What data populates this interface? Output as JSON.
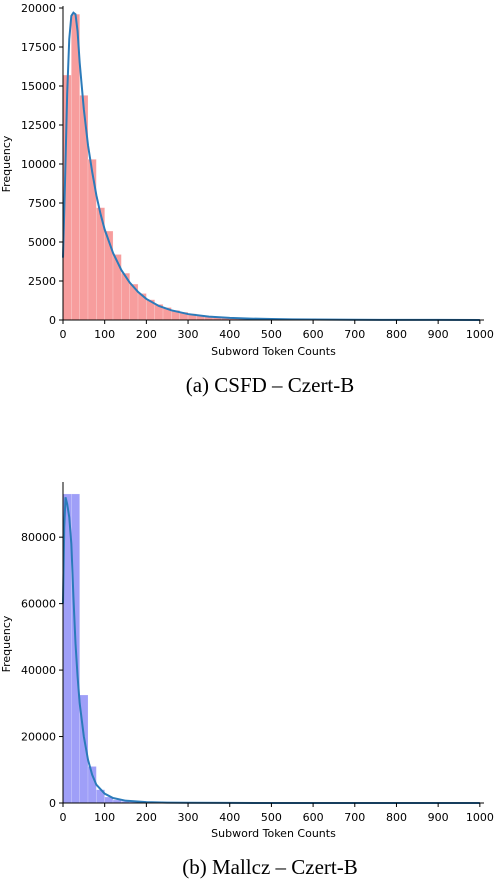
{
  "chart_data": [
    {
      "type": "bar",
      "caption": "(a) CSFD – Czert-B",
      "xlabel": "Subword Token Counts",
      "ylabel": "Frequency",
      "xlim": [
        0,
        1010
      ],
      "ylim": [
        0,
        20000
      ],
      "xticks": [
        0,
        100,
        200,
        300,
        400,
        500,
        600,
        700,
        800,
        900,
        1000
      ],
      "yticks": [
        0,
        2500,
        5000,
        7500,
        10000,
        12500,
        15000,
        17500,
        20000
      ],
      "bar_color": "#f47c7c",
      "kde_color": "#2b7bba",
      "bin_width": 20,
      "bins_x": [
        0,
        20,
        40,
        60,
        80,
        100,
        120,
        140,
        160,
        180,
        200,
        220,
        240,
        260,
        280,
        300,
        320,
        340,
        360,
        380,
        400,
        420,
        440,
        460,
        480,
        500,
        520,
        540,
        560,
        580,
        600,
        620,
        640,
        660,
        680,
        700,
        720,
        740,
        760,
        780,
        800
      ],
      "values": [
        15700,
        19600,
        14400,
        10300,
        7200,
        5700,
        4200,
        3000,
        2300,
        1700,
        1300,
        1000,
        800,
        620,
        500,
        400,
        320,
        260,
        210,
        170,
        140,
        120,
        100,
        85,
        70,
        60,
        50,
        42,
        36,
        30,
        26,
        22,
        19,
        16,
        14,
        12,
        10,
        9,
        8,
        7,
        6
      ],
      "kde_x": [
        0,
        5,
        10,
        15,
        20,
        25,
        30,
        35,
        40,
        50,
        60,
        70,
        80,
        90,
        100,
        120,
        140,
        160,
        180,
        200,
        230,
        260,
        300,
        350,
        400,
        450,
        500,
        550,
        600,
        700,
        800,
        900,
        1000
      ],
      "kde_y": [
        4000,
        9000,
        14500,
        18000,
        19500,
        19700,
        19600,
        18500,
        16500,
        13500,
        11200,
        9500,
        8000,
        6800,
        5800,
        4300,
        3200,
        2400,
        1800,
        1350,
        900,
        620,
        380,
        220,
        140,
        90,
        60,
        40,
        28,
        15,
        8,
        5,
        3
      ]
    },
    {
      "type": "bar",
      "caption": "(b) Mallcz – Czert-B",
      "xlabel": "Subword Token Counts",
      "ylabel": "Frequency",
      "xlim": [
        0,
        1010
      ],
      "ylim": [
        0,
        96000
      ],
      "xticks": [
        0,
        100,
        200,
        300,
        400,
        500,
        600,
        700,
        800,
        900,
        1000
      ],
      "yticks": [
        0,
        20000,
        40000,
        60000,
        80000
      ],
      "bar_color": "#7f7ff5",
      "kde_color": "#2b7bba",
      "bin_width": 20,
      "bins_x": [
        0,
        20,
        40,
        60,
        80,
        100,
        120,
        140,
        160,
        180,
        200,
        220,
        240,
        260,
        280,
        300,
        320,
        340,
        360,
        380,
        400
      ],
      "values": [
        93000,
        93000,
        32500,
        11000,
        4000,
        1800,
        900,
        500,
        300,
        200,
        150,
        100,
        70,
        50,
        40,
        30,
        25,
        20,
        15,
        12,
        10
      ],
      "kde_x": [
        0,
        3,
        6,
        10,
        15,
        20,
        25,
        30,
        35,
        40,
        50,
        60,
        70,
        80,
        100,
        120,
        150,
        200,
        250,
        300,
        400,
        500,
        600,
        800,
        1000
      ],
      "kde_y": [
        60000,
        83000,
        92000,
        90000,
        86000,
        78000,
        62000,
        48000,
        38000,
        30000,
        20000,
        13000,
        8500,
        5500,
        2800,
        1500,
        700,
        250,
        120,
        60,
        25,
        12,
        6,
        3,
        1
      ]
    }
  ]
}
